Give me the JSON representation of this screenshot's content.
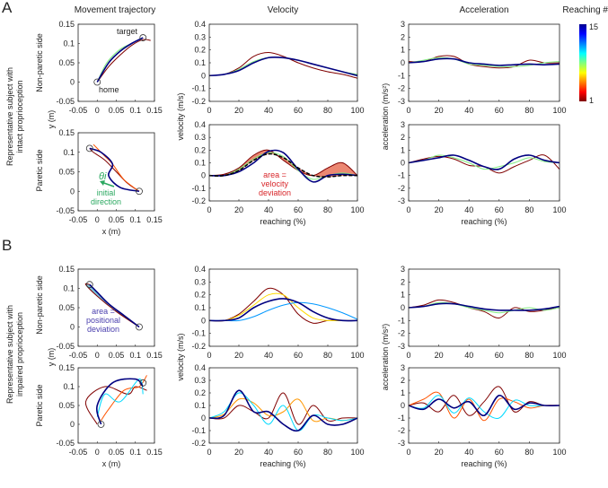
{
  "labels": {
    "panel_a": "A",
    "panel_b": "B",
    "col_traj": "Movement trajectory",
    "col_vel": "Velocity",
    "col_acc": "Acceleration",
    "colorbar_title": "Reaching #",
    "colorbar_max": "15",
    "colorbar_min": "1",
    "group_a_1": "Representative subject with",
    "group_a_2": "intact proprioception",
    "group_b_1": "Representative subject with",
    "group_b_2": "impaired proprioception",
    "row_nonparetic": "Non-paretic side",
    "row_paretic": "Paretic side",
    "y_m": "y (m)",
    "x_m": "x (m)",
    "velocity": "velocity (m/s)",
    "acceleration": "acceleration (m/s²)",
    "reaching": "reaching (%)",
    "target": "target",
    "home": "home",
    "theta": "θi",
    "initial_1": "initial",
    "initial_2": "direction",
    "vel_area_1": "area =",
    "vel_area_2": "velocity",
    "vel_area_3": "deviation",
    "pos_area_1": "area =",
    "pos_area_2": "positional",
    "pos_area_3": "deviation"
  },
  "colors": {
    "vel_area": "#e8735a",
    "pos_area": "#7ec8dc",
    "annot_green": "#2aa860",
    "annot_red": "#d8262a",
    "annot_blue": "#4a3fae"
  },
  "chart_data": [
    {
      "id": "a1_traj",
      "type": "line",
      "xlim": [
        -0.05,
        0.15
      ],
      "ylim": [
        -0.05,
        0.15
      ],
      "xticks": [
        "-0.05",
        "0",
        "0.05",
        "0.1",
        "0.15"
      ],
      "yticks": [
        "-0.05",
        "0",
        "0.05",
        "0.1",
        "0.15"
      ],
      "series": [
        {
          "reach": 1,
          "x": [
            0,
            0.03,
            0.06,
            0.09,
            0.12,
            0.14
          ],
          "y": [
            0,
            0.04,
            0.07,
            0.095,
            0.11,
            0.108
          ]
        },
        {
          "reach": 8,
          "x": [
            0,
            0.025,
            0.06,
            0.09,
            0.12
          ],
          "y": [
            0,
            0.05,
            0.085,
            0.1,
            0.115
          ]
        },
        {
          "reach": 15,
          "x": [
            0,
            0.03,
            0.06,
            0.09,
            0.12
          ],
          "y": [
            0,
            0.05,
            0.08,
            0.1,
            0.115
          ]
        }
      ]
    },
    {
      "id": "a1_vel",
      "type": "line",
      "xlim": [
        0,
        100
      ],
      "ylim": [
        -0.2,
        0.4
      ],
      "xticks": [
        "0",
        "20",
        "40",
        "60",
        "80",
        "100"
      ],
      "yticks": [
        "-0.2",
        "-0.1",
        "0",
        "0.1",
        "0.2",
        "0.3",
        "0.4"
      ],
      "series": [
        {
          "reach": 1,
          "y": [
            0,
            0.01,
            0.06,
            0.15,
            0.18,
            0.15,
            0.1,
            0.06,
            0.03,
            0.01,
            -0.02
          ]
        },
        {
          "reach": 8,
          "y": [
            0,
            0.01,
            0.05,
            0.11,
            0.14,
            0.14,
            0.12,
            0.09,
            0.06,
            0.03,
            0.01
          ]
        },
        {
          "reach": 15,
          "y": [
            0,
            0.01,
            0.04,
            0.1,
            0.14,
            0.14,
            0.12,
            0.09,
            0.06,
            0.03,
            0
          ]
        }
      ]
    },
    {
      "id": "a1_acc",
      "type": "line",
      "xlim": [
        0,
        100
      ],
      "ylim": [
        -3,
        3
      ],
      "xticks": [
        "0",
        "20",
        "40",
        "60",
        "80",
        "100"
      ],
      "yticks": [
        "-3",
        "-2",
        "-1",
        "0",
        "1",
        "2",
        "3"
      ],
      "series": [
        {
          "reach": 1,
          "y": [
            0.1,
            0.1,
            0.5,
            0.5,
            -0.1,
            -0.3,
            -0.4,
            -0.3,
            0.2,
            0,
            0
          ]
        },
        {
          "reach": 8,
          "y": [
            0,
            0.2,
            0.4,
            0.3,
            -0.1,
            -0.2,
            -0.3,
            -0.3,
            -0.2,
            0,
            0.1
          ]
        },
        {
          "reach": 15,
          "y": [
            0,
            0.1,
            0.3,
            0.3,
            0,
            -0.1,
            -0.2,
            -0.15,
            -0.1,
            -0.15,
            -0.1
          ]
        }
      ]
    },
    {
      "id": "a2_traj",
      "type": "line",
      "xlim": [
        -0.05,
        0.15
      ],
      "ylim": [
        -0.05,
        0.15
      ],
      "xticks": [
        "-0.05",
        "0",
        "0.05",
        "0.1",
        "0.15"
      ],
      "yticks": [
        "-0.05",
        "0",
        "0.05",
        "0.1",
        "0.15"
      ],
      "series": [
        {
          "reach": 1,
          "x": [
            0.11,
            0.08,
            0.05,
            0.02,
            -0.01,
            -0.02
          ],
          "y": [
            0,
            0.02,
            0.05,
            0.08,
            0.1,
            0.11
          ]
        },
        {
          "reach": 4,
          "x": [
            0.11,
            0.07,
            0.04,
            0.02,
            0.0,
            -0.01
          ],
          "y": [
            0,
            0.03,
            0.07,
            0.09,
            0.11,
            0.12
          ]
        },
        {
          "reach": 15,
          "x": [
            0.11,
            0.06,
            0.03,
            0.04,
            0.01,
            -0.02
          ],
          "y": [
            0,
            0.01,
            0.04,
            0.07,
            0.1,
            0.11
          ]
        }
      ]
    },
    {
      "id": "a2_vel",
      "type": "line",
      "xlim": [
        0,
        100
      ],
      "ylim": [
        -0.2,
        0.4
      ],
      "xticks": [
        "0",
        "20",
        "40",
        "60",
        "80",
        "100"
      ],
      "yticks": [
        "-0.2",
        "-0.1",
        "0",
        "0.1",
        "0.2",
        "0.3",
        "0.4"
      ],
      "mean": [
        0,
        0,
        0.04,
        0.12,
        0.17,
        0.14,
        0.06,
        0,
        -0.01,
        0,
        0
      ],
      "series": [
        {
          "reach": 1,
          "y": [
            0,
            0.01,
            0.06,
            0.16,
            0.2,
            0.12,
            0.04,
            0,
            0.06,
            0.1,
            0
          ]
        },
        {
          "reach": 8,
          "y": [
            0,
            0,
            0.05,
            0.13,
            0.18,
            0.15,
            0.04,
            -0.03,
            0,
            0.02,
            0
          ]
        },
        {
          "reach": 15,
          "y": [
            0,
            0,
            0.03,
            0.1,
            0.19,
            0.18,
            0.05,
            -0.05,
            0,
            0.01,
            0
          ]
        }
      ]
    },
    {
      "id": "a2_acc",
      "type": "line",
      "xlim": [
        0,
        100
      ],
      "ylim": [
        -3,
        3
      ],
      "xticks": [
        "0",
        "20",
        "40",
        "60",
        "80",
        "100"
      ],
      "yticks": [
        "-3",
        "-2",
        "-1",
        "0",
        "1",
        "2",
        "3"
      ],
      "series": [
        {
          "reach": 1,
          "y": [
            0,
            0.3,
            0.5,
            0.3,
            -0.2,
            -0.3,
            -0.8,
            -0.3,
            0.2,
            0.6,
            -0.5
          ]
        },
        {
          "reach": 8,
          "y": [
            0,
            0.2,
            0.6,
            0.4,
            0,
            -0.5,
            -0.3,
            0,
            0.4,
            0.1,
            0
          ]
        },
        {
          "reach": 15,
          "y": [
            0,
            0.2,
            0.4,
            0.6,
            0.2,
            -0.3,
            -0.5,
            0.3,
            0.6,
            0.2,
            0
          ]
        }
      ]
    },
    {
      "id": "b1_traj",
      "type": "line",
      "xlim": [
        -0.05,
        0.15
      ],
      "ylim": [
        -0.05,
        0.15
      ],
      "xticks": [
        "-0.05",
        "0",
        "0.05",
        "0.1",
        "0.15"
      ],
      "yticks": [
        "-0.05",
        "0",
        "0.05",
        "0.1",
        "0.15"
      ],
      "series": [
        {
          "reach": 1,
          "x": [
            0.11,
            0.05,
            0,
            -0.03,
            -0.02
          ],
          "y": [
            0,
            0.04,
            0.08,
            0.11,
            0.11
          ]
        },
        {
          "reach": 15,
          "x": [
            0.11,
            0.07,
            0.03,
            0,
            -0.02
          ],
          "y": [
            0,
            0.03,
            0.06,
            0.09,
            0.11
          ]
        }
      ]
    },
    {
      "id": "b1_vel",
      "type": "line",
      "xlim": [
        0,
        100
      ],
      "ylim": [
        -0.2,
        0.4
      ],
      "xticks": [
        "0",
        "20",
        "40",
        "60",
        "80",
        "100"
      ],
      "yticks": [
        "-0.2",
        "-0.1",
        "0",
        "0.1",
        "0.2",
        "0.3",
        "0.4"
      ],
      "series": [
        {
          "reach": 1,
          "y": [
            0,
            0,
            0.05,
            0.15,
            0.25,
            0.2,
            0.05,
            -0.02,
            0,
            0,
            0
          ]
        },
        {
          "reach": 6,
          "y": [
            0,
            0,
            0.04,
            0.12,
            0.2,
            0.2,
            0.1,
            0.02,
            0,
            0,
            0
          ]
        },
        {
          "reach": 11,
          "y": [
            0,
            0,
            0,
            0.03,
            0.08,
            0.12,
            0.14,
            0.13,
            0.1,
            0.06,
            0.01
          ]
        },
        {
          "reach": 15,
          "y": [
            0,
            0,
            0.02,
            0.1,
            0.15,
            0.17,
            0.14,
            0.07,
            0.02,
            0,
            0
          ]
        }
      ]
    },
    {
      "id": "b1_acc",
      "type": "line",
      "xlim": [
        0,
        100
      ],
      "ylim": [
        -3,
        3
      ],
      "xticks": [
        "0",
        "20",
        "40",
        "60",
        "80",
        "100"
      ],
      "yticks": [
        "-3",
        "-2",
        "-1",
        "0",
        "1",
        "2",
        "3"
      ],
      "series": [
        {
          "reach": 1,
          "y": [
            0,
            0.2,
            0.6,
            0.4,
            0,
            -0.3,
            -0.8,
            0,
            -0.3,
            -0.2,
            0.1
          ]
        },
        {
          "reach": 8,
          "y": [
            0,
            0.1,
            0.4,
            0.3,
            0,
            -0.2,
            -0.4,
            -0.2,
            0,
            -0.2,
            0
          ]
        },
        {
          "reach": 15,
          "y": [
            0,
            0.1,
            0.3,
            0.3,
            0.1,
            -0.1,
            -0.2,
            -0.2,
            -0.2,
            -0.1,
            0.1
          ]
        }
      ]
    },
    {
      "id": "b2_traj",
      "type": "line",
      "xlim": [
        -0.05,
        0.15
      ],
      "ylim": [
        -0.05,
        0.15
      ],
      "xticks": [
        "-0.05",
        "0",
        "0.05",
        "0.1",
        "0.15"
      ],
      "yticks": [
        "-0.05",
        "0",
        "0.05",
        "0.1",
        "0.15"
      ],
      "series": [
        {
          "reach": 1,
          "x": [
            0,
            -0.03,
            0.02,
            0.08,
            0.1,
            0.13
          ],
          "y": [
            0,
            0.06,
            0.1,
            0.08,
            0.1,
            0.09
          ]
        },
        {
          "reach": 4,
          "x": [
            0.01,
            0.03,
            0.07,
            0.11,
            0.13
          ],
          "y": [
            0.01,
            0.04,
            0.09,
            0.1,
            0.13
          ]
        },
        {
          "reach": 10,
          "x": [
            0,
            0.02,
            0.06,
            0.11,
            0.12
          ],
          "y": [
            0.02,
            0.08,
            0.06,
            0.12,
            0.08
          ]
        },
        {
          "reach": 15,
          "x": [
            0.01,
            0,
            0.04,
            0.1,
            0.12
          ],
          "y": [
            0,
            0.05,
            0.11,
            0.12,
            0.1
          ]
        }
      ]
    },
    {
      "id": "b2_vel",
      "type": "line",
      "xlim": [
        0,
        100
      ],
      "ylim": [
        -0.2,
        0.4
      ],
      "xticks": [
        "0",
        "20",
        "40",
        "60",
        "80",
        "100"
      ],
      "yticks": [
        "-0.2",
        "-0.1",
        "0",
        "0.1",
        "0.2",
        "0.3",
        "0.4"
      ],
      "series": [
        {
          "reach": 1,
          "y": [
            0,
            0,
            0.1,
            0.05,
            0,
            0.2,
            -0.05,
            0.1,
            -0.02,
            0,
            0
          ]
        },
        {
          "reach": 5,
          "y": [
            0,
            0.03,
            0.15,
            0.12,
            0.02,
            0.05,
            0.15,
            -0.02,
            0,
            -0.02,
            0
          ]
        },
        {
          "reach": 10,
          "y": [
            0,
            0.05,
            0.2,
            0.1,
            -0.05,
            0.1,
            -0.1,
            0.02,
            0,
            -0.02,
            0
          ]
        },
        {
          "reach": 15,
          "y": [
            0,
            0.02,
            0.22,
            0.05,
            0.05,
            -0.05,
            -0.1,
            0.02,
            -0.05,
            -0.05,
            0
          ]
        }
      ]
    },
    {
      "id": "b2_acc",
      "type": "line",
      "xlim": [
        0,
        100
      ],
      "ylim": [
        -3,
        3
      ],
      "xticks": [
        "0",
        "20",
        "40",
        "60",
        "80",
        "100"
      ],
      "yticks": [
        "-3",
        "-2",
        "-1",
        "0",
        "1",
        "2",
        "3"
      ],
      "series": [
        {
          "reach": 1,
          "y": [
            0,
            0.2,
            -0.5,
            0.8,
            -0.8,
            0.3,
            1.5,
            -0.5,
            0.3,
            0,
            0
          ]
        },
        {
          "reach": 4,
          "y": [
            0,
            0.5,
            1,
            -1,
            0.5,
            -1.2,
            0.5,
            0.3,
            -0.2,
            0,
            0
          ]
        },
        {
          "reach": 10,
          "y": [
            0,
            -0.2,
            0.8,
            -0.6,
            0.6,
            -0.5,
            -1,
            0.4,
            0,
            0,
            0
          ]
        },
        {
          "reach": 15,
          "y": [
            0,
            -0.3,
            0.5,
            -0.2,
            0.3,
            -0.8,
            0.8,
            -0.3,
            0.2,
            0,
            0
          ]
        }
      ]
    }
  ]
}
